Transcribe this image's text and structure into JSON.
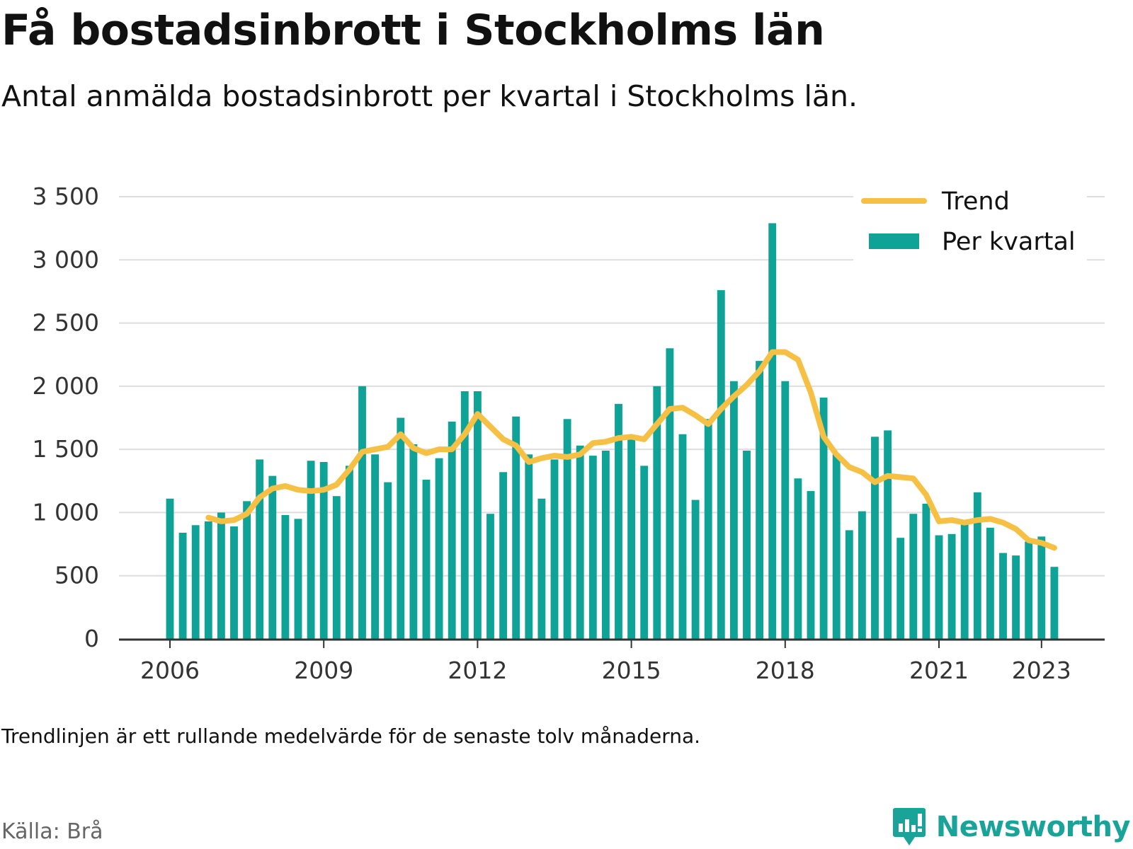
{
  "header": {
    "title": "Få bostadsinbrott i Stockholms län",
    "subtitle": "Antal anmälda bostadsinbrott per kvartal i Stockholms län."
  },
  "footer": {
    "note": "Trendlinjen är ett rullande medelvärde för de senaste tolv månaderna.",
    "source": "Källa: Brå",
    "brand": "Newsworthy",
    "brand_icon": "newsworthy-logo-icon"
  },
  "colors": {
    "bars": "#0fa398",
    "trend": "#f5c044",
    "grid": "#dddddd",
    "axis": "#333333",
    "brand": "#1aa398"
  },
  "chart_data": {
    "type": "bar",
    "title": "Få bostadsinbrott i Stockholms län",
    "subtitle": "Antal anmälda bostadsinbrott per kvartal i Stockholms län.",
    "ylim": [
      0,
      3500
    ],
    "yticks": [
      0,
      500,
      1000,
      1500,
      2000,
      2500,
      3000,
      3500
    ],
    "ytick_labels": [
      "0",
      "500",
      "1 000",
      "1 500",
      "2 000",
      "2 500",
      "3 000",
      "3 500"
    ],
    "xticks": [
      2006,
      2009,
      2012,
      2015,
      2018,
      2021,
      2023
    ],
    "grid": true,
    "legend_position": "top-right",
    "legend": [
      "Trend",
      "Per kvartal"
    ],
    "x_start": 2006.0,
    "x_step_years": 0.25,
    "series": [
      {
        "name": "Per kvartal",
        "type": "bar",
        "values": [
          1110,
          840,
          900,
          930,
          1000,
          890,
          1090,
          1420,
          1290,
          980,
          950,
          1410,
          1400,
          1130,
          1370,
          2000,
          1460,
          1240,
          1750,
          1540,
          1260,
          1430,
          1720,
          1960,
          1960,
          990,
          1320,
          1760,
          1460,
          1110,
          1420,
          1740,
          1530,
          1450,
          1490,
          1860,
          1580,
          1370,
          2000,
          2300,
          1620,
          1100,
          1740,
          2760,
          2040,
          1490,
          2200,
          3290,
          2040,
          1270,
          1170,
          1910,
          1460,
          860,
          1010,
          1600,
          1650,
          800,
          990,
          1070,
          820,
          830,
          920,
          1160,
          880,
          680,
          660,
          770,
          810,
          570
        ]
      },
      {
        "name": "Trend",
        "type": "line",
        "start_index": 3,
        "values": [
          960,
          930,
          940,
          990,
          1120,
          1190,
          1210,
          1180,
          1170,
          1180,
          1220,
          1340,
          1480,
          1500,
          1520,
          1620,
          1510,
          1470,
          1500,
          1500,
          1620,
          1780,
          1680,
          1580,
          1530,
          1400,
          1430,
          1450,
          1440,
          1460,
          1550,
          1560,
          1590,
          1600,
          1580,
          1700,
          1820,
          1830,
          1770,
          1700,
          1820,
          1920,
          2010,
          2120,
          2270,
          2270,
          2210,
          1950,
          1600,
          1460,
          1360,
          1320,
          1240,
          1290,
          1280,
          1270,
          1140,
          930,
          940,
          920,
          940,
          950,
          920,
          870,
          780,
          760,
          720
        ]
      }
    ]
  }
}
